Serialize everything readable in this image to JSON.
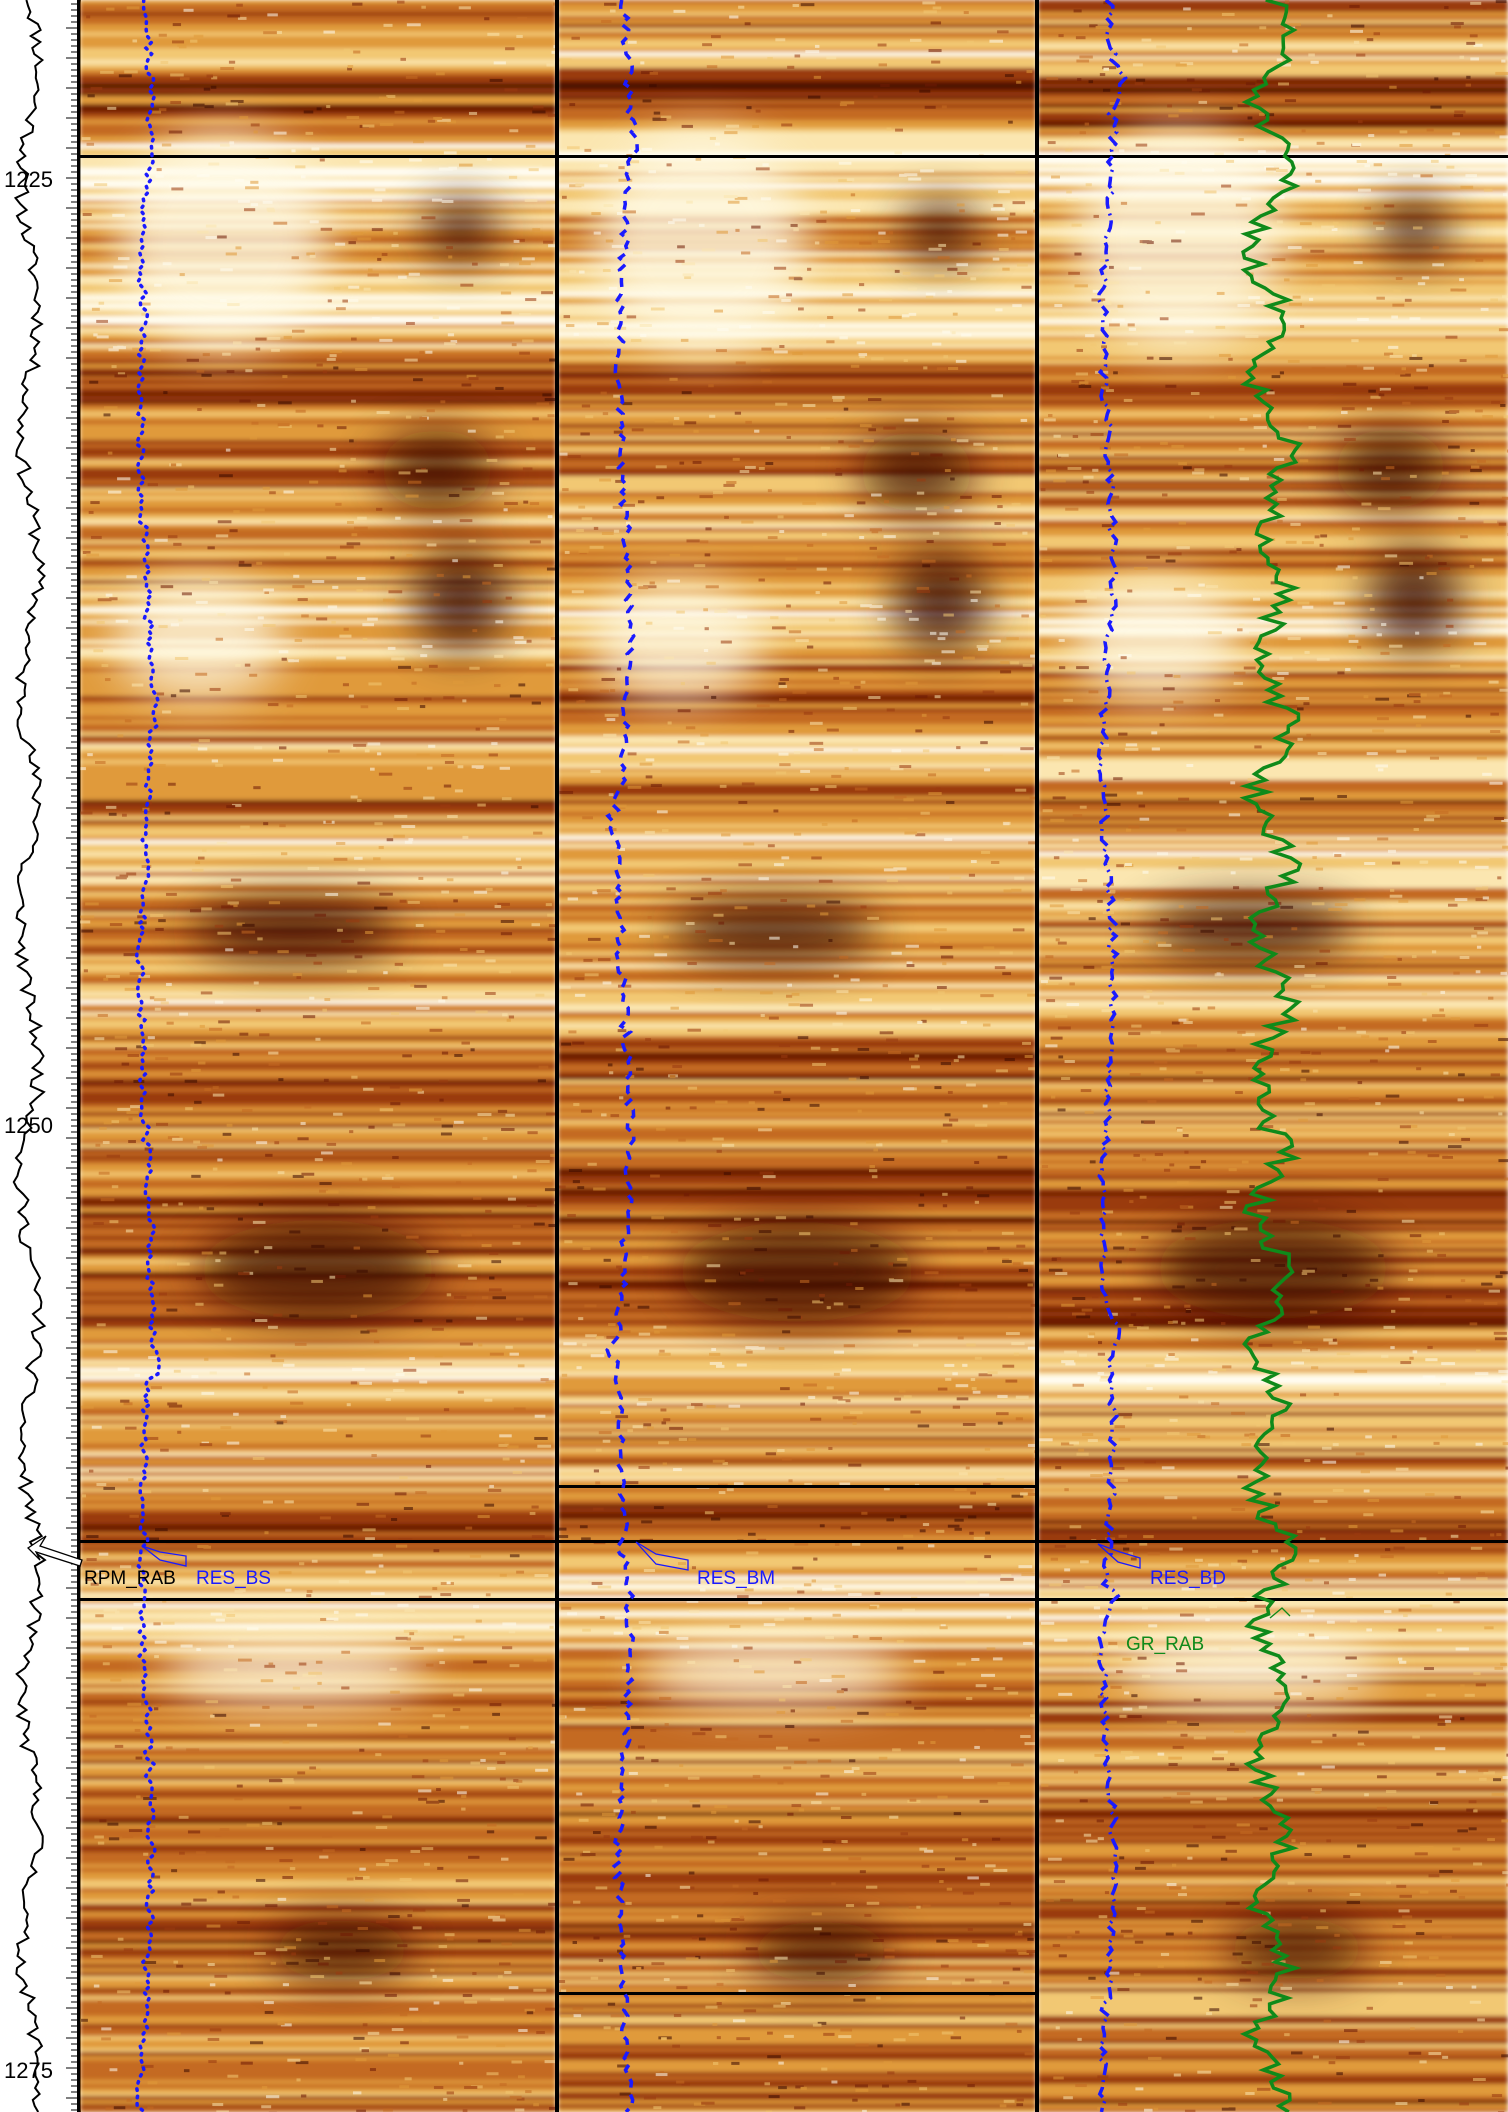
{
  "chart_data": {
    "type": "image-log",
    "depth_axis": {
      "unit": "",
      "range": [
        1216,
        1276
      ],
      "tick_labels": [
        "1225",
        "1250",
        "1275"
      ],
      "tick_values": [
        1225,
        1250,
        1275
      ]
    },
    "tracks": [
      {
        "id": "track1",
        "image": "resistivity image (shallow)",
        "curves": [
          {
            "name": "RES_BS",
            "color": "#1a1aff",
            "style": "dotted"
          },
          {
            "name": "RPM_RAB",
            "color": "#000000",
            "style": "solid",
            "track": "depth"
          }
        ]
      },
      {
        "id": "track2",
        "image": "resistivity image (medium)",
        "curves": [
          {
            "name": "RES_BM",
            "color": "#1a1aff",
            "style": "dashed"
          }
        ]
      },
      {
        "id": "track3",
        "image": "resistivity image (deep)",
        "curves": [
          {
            "name": "RES_BD",
            "color": "#1a1aff",
            "style": "dash-dot"
          },
          {
            "name": "GR_RAB",
            "color": "#1a8a1a",
            "style": "solid"
          }
        ]
      }
    ],
    "palette": [
      "#3a0a00",
      "#6e1a05",
      "#9a3a10",
      "#c46a22",
      "#e09a3a",
      "#f2c873",
      "#fbe6b0",
      "#fffdf2"
    ],
    "grid": false,
    "legend": "inline labels near depth 1266"
  },
  "labels": {
    "rpm_rab": "RPM_RAB",
    "res_bs": "RES_BS",
    "res_bm": "RES_BM",
    "res_bd": "RES_BD",
    "gr_rab": "GR_RAB",
    "depth_1225": "1225",
    "depth_1250": "1250",
    "depth_1275": "1275"
  }
}
